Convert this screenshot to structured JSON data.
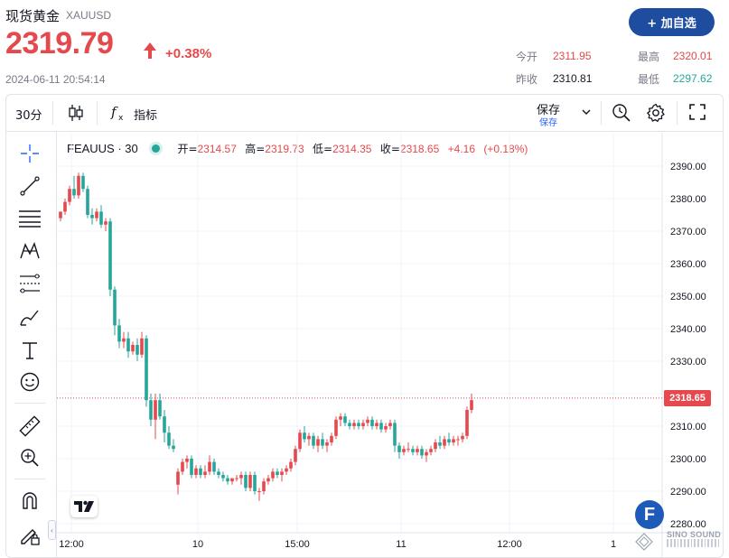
{
  "quote": {
    "name": "现货黄金",
    "code": "XAUUSD",
    "price": "2319.79",
    "change_pct": "+0.38%",
    "timestamp": "2024-06-11 20:54:14",
    "add_watchlist_label": "+ 加自选",
    "stats": [
      {
        "label": "今开",
        "value": "2311.95",
        "color": "#e5484d"
      },
      {
        "label": "最高",
        "value": "2320.01",
        "color": "#e5484d"
      },
      {
        "label": "昨收",
        "value": "2310.81",
        "color": "#131722"
      },
      {
        "label": "最低",
        "value": "2297.62",
        "color": "#26a69a"
      }
    ],
    "up_color": "#e5484d",
    "down_color": "#26a69a"
  },
  "toolbar": {
    "interval": "30分",
    "candle_icon": "candlestick-icon",
    "indicator_icon": "function-fx-icon",
    "indicator_label": "指标",
    "save_label": "保存",
    "save_sub_label": "保存",
    "icons": [
      "chevron-down-icon",
      "search-clock-icon",
      "gear-icon",
      "fullscreen-icon"
    ]
  },
  "side_tools": [
    "crosshair-icon",
    "trend-line-icon",
    "horizontal-lines-icon",
    "pattern-icon",
    "fib-icon",
    "brush-icon",
    "text-icon",
    "emoji-icon",
    "ruler-icon",
    "zoom-in-icon",
    "magnet-icon",
    "lock-pencil-icon"
  ],
  "legend": {
    "symbol": "FEAUUS · 30",
    "open_label": "开=",
    "open": "2314.57",
    "high_label": "高=",
    "high": "2319.73",
    "low_label": "低=",
    "low": "2314.35",
    "close_label": "收=",
    "close": "2318.65",
    "change": "+4.16",
    "change_pct": "(+0.18%)"
  },
  "last_price_tag": "2318.65",
  "logos": {
    "tv": "TradingView",
    "badge": "F",
    "wm_text": "SINO SOUND"
  },
  "chart_data": {
    "type": "candlestick",
    "ylim": [
      2278,
      2394
    ],
    "y_ticks": [
      2390,
      2380,
      2370,
      2360,
      2350,
      2340,
      2330,
      2320,
      2310,
      2300,
      2290,
      2280
    ],
    "y_tick_labels": [
      "2390.00",
      "2380.00",
      "2370.00",
      "2360.00",
      "2350.00",
      "2340.00",
      "2330.00",
      "2320.00",
      "2310.00",
      "2300.00",
      "2290.00",
      "2280.00"
    ],
    "x_labels": [
      "12:00",
      "10",
      "15:00",
      "11",
      "12:00",
      "1"
    ],
    "x_label_bar_index": [
      0,
      28,
      50,
      73,
      97,
      120
    ],
    "last_price": 2318.65,
    "candles": [
      [
        2374,
        2376,
        2373,
        2376
      ],
      [
        2376,
        2380,
        2375,
        2379
      ],
      [
        2379,
        2384,
        2378,
        2383
      ],
      [
        2383,
        2387,
        2380,
        2381
      ],
      [
        2381,
        2388,
        2380,
        2387
      ],
      [
        2387,
        2388,
        2382,
        2383
      ],
      [
        2383,
        2384,
        2374,
        2375
      ],
      [
        2375,
        2377,
        2372,
        2374
      ],
      [
        2374,
        2377,
        2373,
        2376
      ],
      [
        2376,
        2378,
        2371,
        2372
      ],
      [
        2372,
        2374,
        2370,
        2373
      ],
      [
        2373,
        2374,
        2350,
        2352
      ],
      [
        2352,
        2353,
        2338,
        2341
      ],
      [
        2341,
        2343,
        2334,
        2336
      ],
      [
        2336,
        2339,
        2334,
        2337
      ],
      [
        2337,
        2339,
        2331,
        2333
      ],
      [
        2333,
        2336,
        2332,
        2335
      ],
      [
        2335,
        2337,
        2330,
        2332
      ],
      [
        2332,
        2339,
        2331,
        2337
      ],
      [
        2337,
        2338,
        2316,
        2318
      ],
      [
        2318,
        2320,
        2310,
        2312
      ],
      [
        2312,
        2320,
        2306,
        2318
      ],
      [
        2318,
        2320,
        2312,
        2313
      ],
      [
        2313,
        2315,
        2305,
        2308
      ],
      [
        2308,
        2310,
        2303,
        2304
      ],
      [
        2304,
        2306,
        2302,
        2303
      ],
      [
        2292,
        2297,
        2289,
        2296
      ],
      [
        2296,
        2300,
        2295,
        2299
      ],
      [
        2299,
        2301,
        2297,
        2300
      ],
      [
        2300,
        2301,
        2294,
        2295
      ],
      [
        2295,
        2298,
        2294,
        2297
      ],
      [
        2297,
        2298,
        2294,
        2295
      ],
      [
        2295,
        2298,
        2294,
        2296
      ],
      [
        2296,
        2301,
        2295,
        2299
      ],
      [
        2299,
        2300,
        2295,
        2296
      ],
      [
        2296,
        2297,
        2294,
        2295
      ],
      [
        2295,
        2296,
        2293,
        2294
      ],
      [
        2294,
        2295,
        2292,
        2293
      ],
      [
        2293,
        2294,
        2292,
        2294
      ],
      [
        2294,
        2295,
        2293,
        2294
      ],
      [
        2294,
        2296,
        2292,
        2295
      ],
      [
        2295,
        2296,
        2290,
        2291
      ],
      [
        2291,
        2296,
        2290,
        2295
      ],
      [
        2295,
        2296,
        2289,
        2290
      ],
      [
        2290,
        2291,
        2287,
        2290
      ],
      [
        2290,
        2294,
        2289,
        2293
      ],
      [
        2293,
        2295,
        2292,
        2294
      ],
      [
        2294,
        2297,
        2293,
        2296
      ],
      [
        2296,
        2297,
        2294,
        2295
      ],
      [
        2295,
        2297,
        2293,
        2296
      ],
      [
        2296,
        2298,
        2295,
        2297
      ],
      [
        2297,
        2300,
        2296,
        2299
      ],
      [
        2299,
        2304,
        2298,
        2303
      ],
      [
        2303,
        2309,
        2302,
        2308
      ],
      [
        2308,
        2310,
        2305,
        2306
      ],
      [
        2306,
        2308,
        2304,
        2307
      ],
      [
        2307,
        2308,
        2303,
        2304
      ],
      [
        2304,
        2307,
        2302,
        2306
      ],
      [
        2306,
        2308,
        2303,
        2304
      ],
      [
        2304,
        2306,
        2302,
        2305
      ],
      [
        2305,
        2308,
        2304,
        2307
      ],
      [
        2307,
        2313,
        2306,
        2312
      ],
      [
        2312,
        2314,
        2310,
        2313
      ],
      [
        2313,
        2314,
        2310,
        2311
      ],
      [
        2311,
        2312,
        2309,
        2310
      ],
      [
        2310,
        2312,
        2309,
        2311
      ],
      [
        2311,
        2312,
        2309,
        2310
      ],
      [
        2310,
        2312,
        2309,
        2311
      ],
      [
        2311,
        2313,
        2310,
        2312
      ],
      [
        2312,
        2313,
        2309,
        2310
      ],
      [
        2310,
        2312,
        2309,
        2311
      ],
      [
        2311,
        2312,
        2308,
        2309
      ],
      [
        2309,
        2311,
        2308,
        2310
      ],
      [
        2310,
        2312,
        2309,
        2311
      ],
      [
        2311,
        2312,
        2302,
        2304
      ],
      [
        2304,
        2305,
        2300,
        2302
      ],
      [
        2302,
        2304,
        2301,
        2303
      ],
      [
        2303,
        2305,
        2302,
        2303
      ],
      [
        2303,
        2304,
        2301,
        2302
      ],
      [
        2302,
        2304,
        2301,
        2303
      ],
      [
        2303,
        2304,
        2300,
        2301
      ],
      [
        2301,
        2303,
        2299,
        2302
      ],
      [
        2302,
        2304,
        2301,
        2303
      ],
      [
        2303,
        2306,
        2302,
        2305
      ],
      [
        2305,
        2307,
        2303,
        2304
      ],
      [
        2304,
        2307,
        2303,
        2306
      ],
      [
        2306,
        2308,
        2304,
        2305
      ],
      [
        2305,
        2307,
        2304,
        2306
      ],
      [
        2306,
        2307,
        2304,
        2306
      ],
      [
        2306,
        2308,
        2305,
        2307
      ],
      [
        2307,
        2316,
        2306,
        2315
      ],
      [
        2315,
        2320,
        2314,
        2318
      ]
    ]
  }
}
